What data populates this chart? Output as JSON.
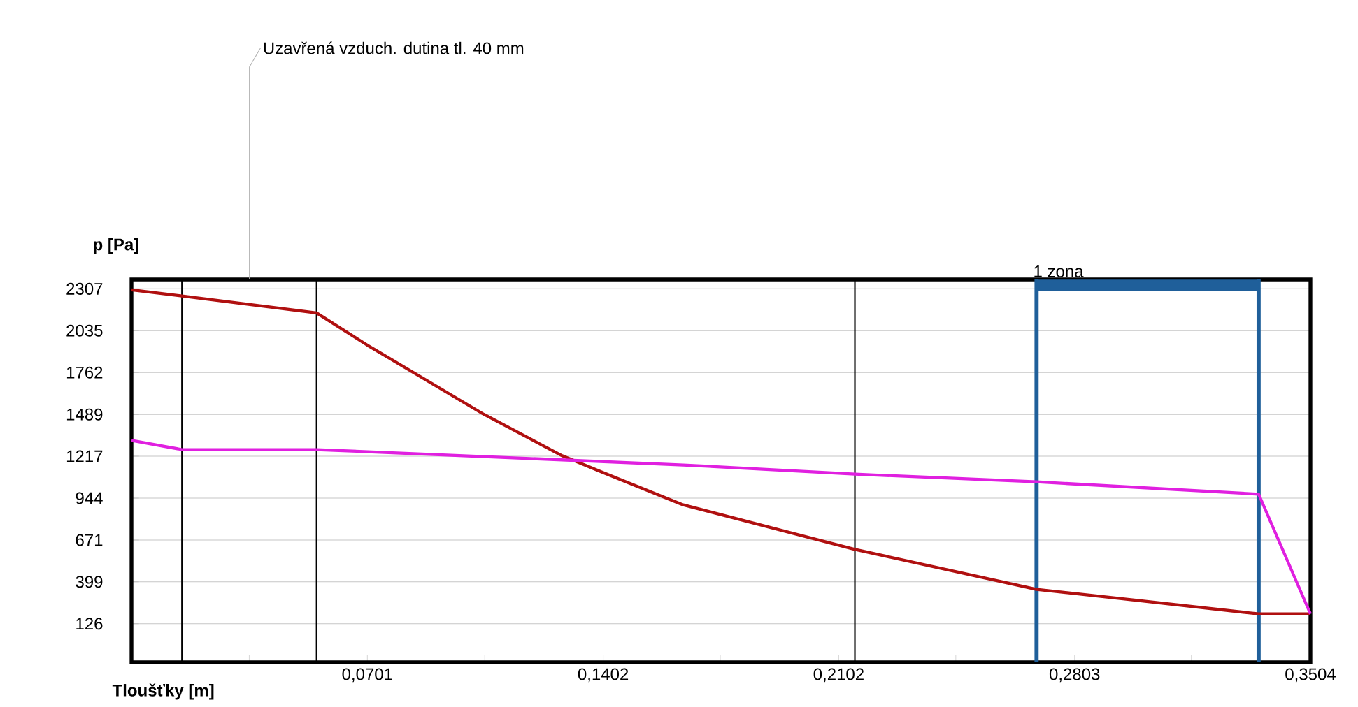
{
  "chart_data": {
    "type": "line",
    "xlabel": "Tloušťky [m]",
    "ylabel": "p [Pa]",
    "xlim": [
      0,
      0.3504
    ],
    "ylim": [
      -125,
      2368
    ],
    "xticks": [
      {
        "value": 0.035,
        "label": null
      },
      {
        "value": 0.0701,
        "label": "0,0701"
      },
      {
        "value": 0.105,
        "label": null
      },
      {
        "value": 0.1402,
        "label": "0,1402"
      },
      {
        "value": 0.175,
        "label": null
      },
      {
        "value": 0.2102,
        "label": "0,2102"
      },
      {
        "value": 0.245,
        "label": null
      },
      {
        "value": 0.2803,
        "label": "0,2803"
      },
      {
        "value": 0.315,
        "label": null
      },
      {
        "value": 0.3504,
        "label": "0,3504"
      }
    ],
    "yticks": [
      126,
      399,
      671,
      944,
      1217,
      1489,
      1762,
      2035,
      2307
    ],
    "grid": "y",
    "marker": "none",
    "line_style": "solid",
    "series": [
      {
        "color": "#b01010",
        "x": [
          0,
          0.015,
          0.055,
          0.0701,
          0.1047,
          0.128,
          0.1402,
          0.164,
          0.215,
          0.269,
          0.298,
          0.335,
          0.3504
        ],
        "values": [
          2300,
          2260,
          2150,
          1940,
          1490,
          1220,
          1110,
          900,
          610,
          350,
          280,
          190,
          190
        ]
      },
      {
        "color": "#e020e0",
        "x": [
          0,
          0.015,
          0.055,
          0.164,
          0.215,
          0.269,
          0.335,
          0.3504
        ],
        "values": [
          1320,
          1260,
          1260,
          1160,
          1100,
          1050,
          970,
          190
        ]
      },
      {
        "color": "#1f5f9a",
        "x": [
          0.269,
          0.335
        ],
        "values": [
          2330,
          2330
        ]
      }
    ],
    "ref_lines": [
      {
        "axis": "x",
        "value": 0.015,
        "color": "#000000"
      },
      {
        "axis": "x",
        "value": 0.055,
        "color": "#000000"
      },
      {
        "axis": "x",
        "value": 0.215,
        "color": "#000000"
      },
      {
        "axis": "x",
        "value": 0.269,
        "color": "#1f5f9a",
        "label": "1 zona"
      },
      {
        "axis": "x",
        "value": 0.335,
        "color": "#1f5f9a"
      }
    ],
    "annotations": [
      "Uzavřená vzduch. dutina tl. 40 mm"
    ]
  }
}
